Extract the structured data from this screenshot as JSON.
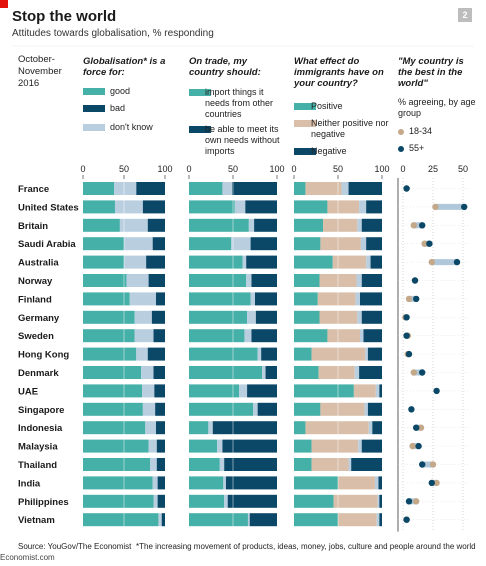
{
  "title": "Stop the world",
  "subtitle": "Attitudes towards globalisation, % responding",
  "badge": "2",
  "date_line1": "October-",
  "date_line2": "November",
  "date_line3": "2016",
  "footer_source": "Source: YouGov/The Economist",
  "footnote": "*The increasing movement of products, ideas, money, jobs, culture and people around the world",
  "site": "Economist.com",
  "colors": {
    "teal": "#45b0a8",
    "navy": "#0b4868",
    "lightblue": "#b9cfe0",
    "beige": "#d9bfa9",
    "dot_young": "#c4a88a",
    "dot_old": "#0b4868",
    "connector": "#8fb0c9"
  },
  "chart_data": [
    {
      "type": "bar",
      "stacked": true,
      "title": "Globalisation* is a force for:",
      "categories": [
        "France",
        "United States",
        "Britain",
        "Saudi Arabia",
        "Australia",
        "Norway",
        "Finland",
        "Germany",
        "Sweden",
        "Hong Kong",
        "Denmark",
        "UAE",
        "Singapore",
        "Indonesia",
        "Malaysia",
        "Thailand",
        "India",
        "Philippines",
        "Vietnam"
      ],
      "series": [
        {
          "name": "good",
          "values": [
            38,
            39,
            45,
            50,
            50,
            53,
            57,
            63,
            63,
            65,
            71,
            72,
            73,
            76,
            80,
            82,
            85,
            86,
            92
          ]
        },
        {
          "name": "don't know",
          "values": [
            27,
            34,
            34,
            35,
            27,
            27,
            32,
            21,
            23,
            14,
            15,
            15,
            15,
            13,
            10,
            8,
            6,
            5,
            4
          ]
        },
        {
          "name": "bad",
          "values": [
            35,
            27,
            21,
            15,
            23,
            20,
            11,
            16,
            14,
            21,
            14,
            13,
            12,
            11,
            10,
            10,
            9,
            9,
            4
          ]
        }
      ],
      "ylim": [
        0,
        100
      ],
      "ticks": [
        "0",
        "50",
        "100"
      ]
    },
    {
      "type": "bar",
      "stacked": true,
      "title": "On trade, my country should:",
      "categories": [
        "France",
        "United States",
        "Britain",
        "Saudi Arabia",
        "Australia",
        "Norway",
        "Finland",
        "Germany",
        "Sweden",
        "Hong Kong",
        "Denmark",
        "UAE",
        "Singapore",
        "Indonesia",
        "Malaysia",
        "Thailand",
        "India",
        "Philippines",
        "Vietnam"
      ],
      "series": [
        {
          "name": "import things it needs from other countries",
          "values": [
            38,
            52,
            68,
            48,
            61,
            65,
            70,
            66,
            63,
            78,
            83,
            57,
            73,
            22,
            32,
            35,
            39,
            40,
            67
          ]
        },
        {
          "name": "don't know",
          "values": [
            11,
            12,
            6,
            22,
            4,
            6,
            5,
            10,
            8,
            4,
            4,
            9,
            5,
            5,
            6,
            5,
            3,
            4,
            2
          ]
        },
        {
          "name": "be able to meet its own needs without imports",
          "values": [
            51,
            36,
            26,
            30,
            35,
            29,
            25,
            24,
            29,
            18,
            13,
            34,
            22,
            73,
            62,
            60,
            58,
            56,
            31
          ]
        }
      ],
      "ylim": [
        0,
        100
      ],
      "ticks": [
        "0",
        "50",
        "100"
      ]
    },
    {
      "type": "bar",
      "stacked": true,
      "title": "What effect do immigrants have on your country?",
      "categories": [
        "France",
        "United States",
        "Britain",
        "Saudi Arabia",
        "Australia",
        "Norway",
        "Finland",
        "Germany",
        "Sweden",
        "Hong Kong",
        "Denmark",
        "UAE",
        "Singapore",
        "Indonesia",
        "Malaysia",
        "Thailand",
        "India",
        "Philippines",
        "Vietnam"
      ],
      "series": [
        {
          "name": "Positive",
          "values": [
            13,
            38,
            33,
            30,
            44,
            29,
            27,
            29,
            38,
            20,
            28,
            68,
            30,
            13,
            20,
            20,
            50,
            45,
            50
          ]
        },
        {
          "name": "Neither positive nor negative",
          "values": [
            41,
            36,
            39,
            46,
            38,
            42,
            43,
            43,
            37,
            61,
            41,
            25,
            50,
            72,
            53,
            42,
            42,
            50,
            44
          ]
        },
        {
          "name": "don't know",
          "values": [
            8,
            8,
            5,
            6,
            5,
            6,
            5,
            5,
            4,
            3,
            5,
            4,
            4,
            4,
            4,
            3,
            4,
            2,
            3
          ]
        },
        {
          "name": "Negative",
          "values": [
            38,
            18,
            23,
            18,
            13,
            23,
            25,
            23,
            21,
            16,
            26,
            3,
            16,
            11,
            23,
            35,
            4,
            3,
            3
          ]
        }
      ],
      "ylim": [
        0,
        100
      ],
      "ticks": [
        "0",
        "50",
        "100"
      ]
    },
    {
      "type": "scatter",
      "title": "\"My country is the best in the world\"",
      "subtitle": "% agreeing, by age group",
      "categories": [
        "France",
        "United States",
        "Britain",
        "Saudi Arabia",
        "Australia",
        "Norway",
        "Finland",
        "Germany",
        "Sweden",
        "Hong Kong",
        "Denmark",
        "UAE",
        "Singapore",
        "Indonesia",
        "Malaysia",
        "Thailand",
        "India",
        "Philippines",
        "Vietnam"
      ],
      "series": [
        {
          "name": "18-34",
          "values": [
            3,
            27,
            9,
            18,
            24,
            10,
            5,
            2,
            4,
            4,
            9,
            null,
            null,
            15,
            8,
            25,
            28,
            11,
            3
          ]
        },
        {
          "name": "55+",
          "values": [
            3,
            51,
            16,
            22,
            45,
            10,
            11,
            3,
            3,
            5,
            16,
            28,
            7,
            11,
            13,
            16,
            24,
            5,
            3
          ]
        }
      ],
      "xlim": [
        0,
        50
      ],
      "ticks": [
        "0",
        "25",
        "50"
      ]
    }
  ]
}
